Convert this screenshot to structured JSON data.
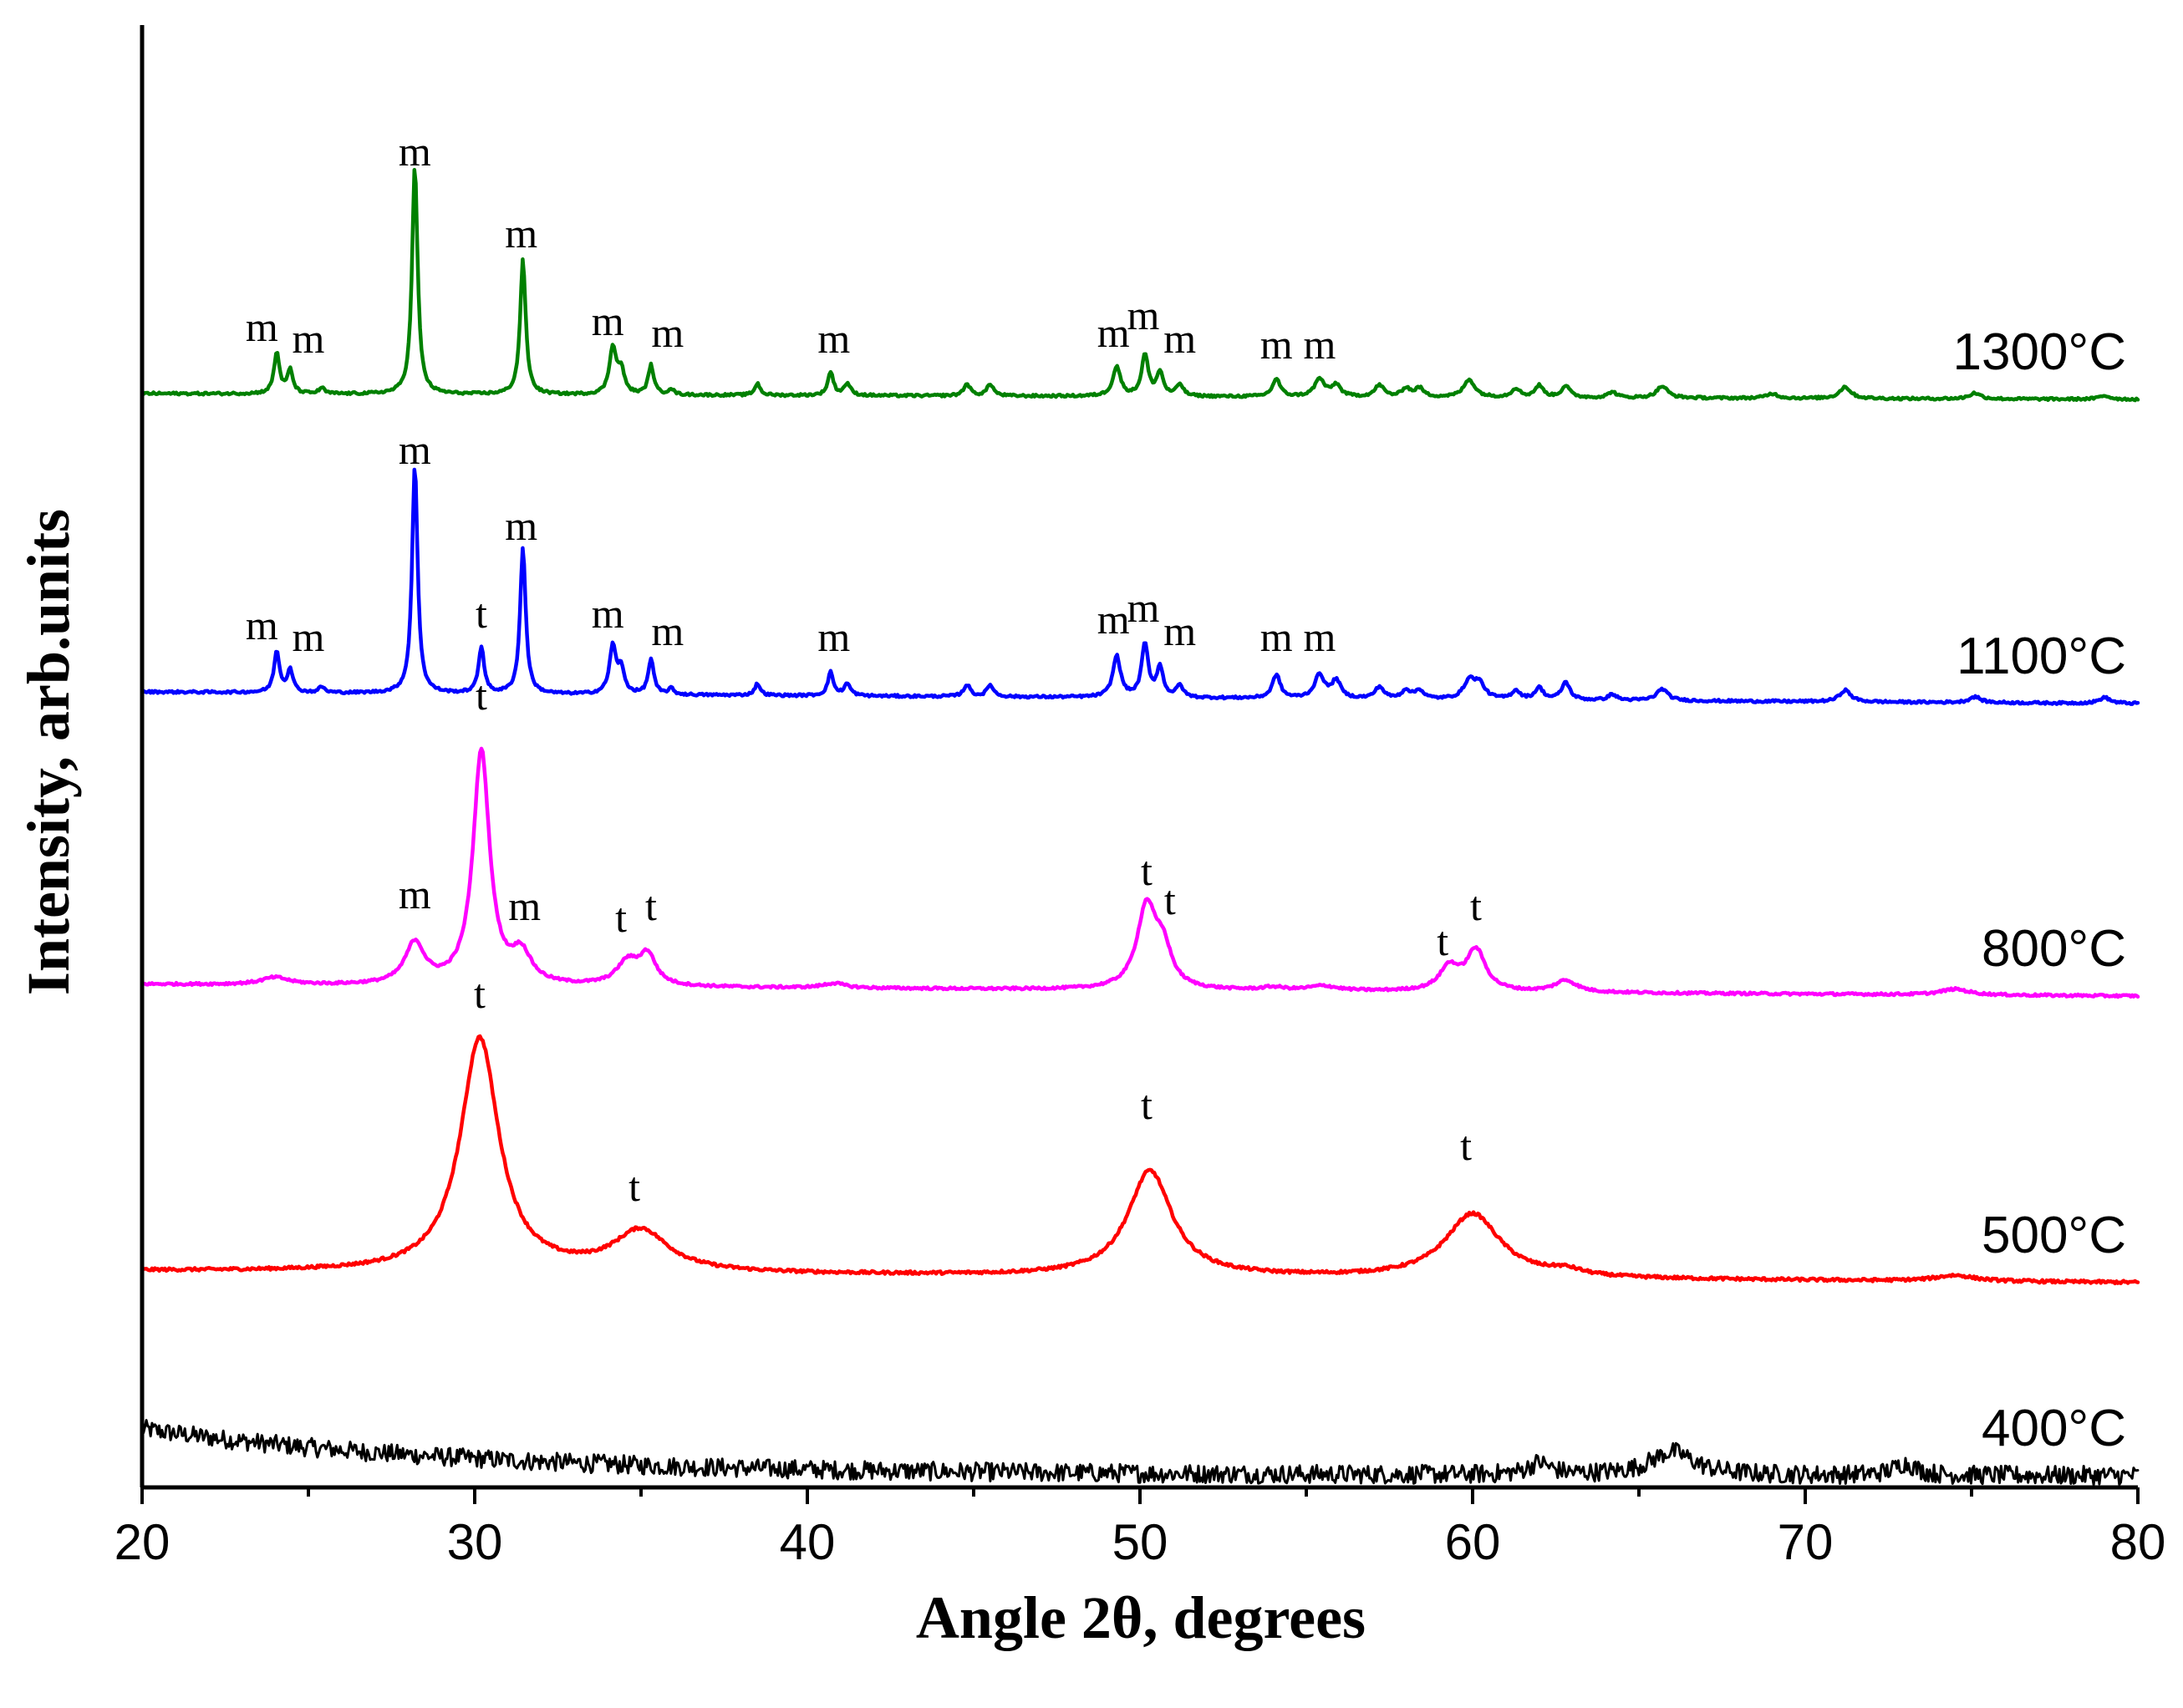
{
  "chart_data": {
    "type": "line",
    "title": "",
    "xlabel": "Angle 2θ, degrees",
    "ylabel": "Intensity, arb.units",
    "xlim": [
      20,
      80
    ],
    "ylim": [
      0,
      250
    ],
    "xticks": [
      "20",
      "30",
      "40",
      "50",
      "60",
      "70",
      "80"
    ],
    "tick_values": [
      20,
      30,
      40,
      50,
      60,
      70,
      80
    ],
    "y_ticks_shown": false,
    "series": [
      {
        "name": "400°C",
        "color": "#000000",
        "kind": "amorphous-noise",
        "start": 10,
        "end": 2,
        "decay": 10,
        "noise": 1.6,
        "peaks": [
          [
            62,
            2,
            0.4
          ],
          [
            66,
            4,
            0.8
          ],
          [
            73,
            2,
            0.4
          ]
        ]
      },
      {
        "name": "500°C",
        "color": "#ff0000",
        "baseline": [
          37,
          35
        ],
        "noise": 0.25,
        "peaks": [
          [
            30.15,
            40,
            0.7
          ],
          [
            35.0,
            7,
            1.0
          ],
          [
            50.3,
            18,
            0.8
          ],
          [
            60.0,
            11,
            1.0
          ],
          [
            62.8,
            1,
            0.6
          ],
          [
            74.5,
            1,
            0.7
          ]
        ],
        "labels": [
          {
            "text": "t",
            "x": 30.15,
            "y": 82
          },
          {
            "text": "t",
            "x": 34.8,
            "y": 49
          },
          {
            "text": "t",
            "x": 50.2,
            "y": 63
          },
          {
            "text": "t",
            "x": 59.8,
            "y": 56
          }
        ]
      },
      {
        "name": "800°C",
        "color": "#ff00ff",
        "baseline": [
          86,
          84
        ],
        "noise": 0.2,
        "peaks": [
          [
            24.0,
            1.2,
            0.5
          ],
          [
            28.2,
            7,
            0.35
          ],
          [
            30.2,
            40,
            0.3
          ],
          [
            31.4,
            5,
            0.35
          ],
          [
            34.6,
            4,
            0.4
          ],
          [
            35.2,
            5,
            0.3
          ],
          [
            50.2,
            14,
            0.35
          ],
          [
            50.7,
            6,
            0.3
          ],
          [
            59.3,
            4,
            0.35
          ],
          [
            60.1,
            7,
            0.35
          ],
          [
            62.8,
            2,
            0.4
          ],
          [
            74.5,
            1,
            0.5
          ],
          [
            40.8,
            0.8,
            0.4
          ],
          [
            55.5,
            0.8,
            0.5
          ],
          [
            54.0,
            0.5,
            0.4
          ]
        ],
        "labels": [
          {
            "text": "m",
            "x": 28.2,
            "y": 99
          },
          {
            "text": "t",
            "x": 30.2,
            "y": 133
          },
          {
            "text": "m",
            "x": 31.5,
            "y": 97
          },
          {
            "text": "t",
            "x": 34.4,
            "y": 95
          },
          {
            "text": "t",
            "x": 35.3,
            "y": 97
          },
          {
            "text": "t",
            "x": 50.2,
            "y": 103
          },
          {
            "text": "t",
            "x": 50.9,
            "y": 98
          },
          {
            "text": "t",
            "x": 59.1,
            "y": 91
          },
          {
            "text": "t",
            "x": 60.1,
            "y": 97
          }
        ]
      },
      {
        "name": "1100°C",
        "color": "#0000ff",
        "baseline": [
          136,
          134
        ],
        "noise": 0.2,
        "peaks": [
          [
            24.05,
            7,
            0.1
          ],
          [
            24.45,
            4,
            0.1
          ],
          [
            25.4,
            1,
            0.1
          ],
          [
            28.2,
            39,
            0.1
          ],
          [
            30.2,
            8,
            0.1
          ],
          [
            31.45,
            25,
            0.1
          ],
          [
            34.15,
            8,
            0.12
          ],
          [
            34.4,
            4,
            0.12
          ],
          [
            35.3,
            6,
            0.1
          ],
          [
            35.9,
            1,
            0.1
          ],
          [
            38.5,
            2,
            0.1
          ],
          [
            40.7,
            4,
            0.1
          ],
          [
            41.2,
            2,
            0.12
          ],
          [
            44.8,
            2,
            0.12
          ],
          [
            45.5,
            2,
            0.12
          ],
          [
            49.3,
            7,
            0.14
          ],
          [
            50.15,
            9,
            0.12
          ],
          [
            50.6,
            5,
            0.12
          ],
          [
            51.2,
            2,
            0.12
          ],
          [
            54.1,
            4,
            0.14
          ],
          [
            55.4,
            4,
            0.18
          ],
          [
            55.9,
            3,
            0.16
          ],
          [
            57.2,
            2,
            0.16
          ],
          [
            58.0,
            1.5,
            0.15
          ],
          [
            58.4,
            1.5,
            0.15
          ],
          [
            59.9,
            3,
            0.2
          ],
          [
            60.2,
            2.5,
            0.2
          ],
          [
            61.3,
            1.5,
            0.15
          ],
          [
            62.0,
            2,
            0.15
          ],
          [
            62.8,
            3,
            0.15
          ],
          [
            64.2,
            1,
            0.15
          ],
          [
            65.7,
            2,
            0.2
          ],
          [
            71.2,
            2,
            0.2
          ],
          [
            75.1,
            1,
            0.2
          ],
          [
            79.0,
            1,
            0.2
          ]
        ],
        "labels": [
          {
            "text": "m",
            "x": 23.6,
            "y": 145
          },
          {
            "text": "m",
            "x": 25.0,
            "y": 143
          },
          {
            "text": "m",
            "x": 28.2,
            "y": 175
          },
          {
            "text": "t",
            "x": 30.2,
            "y": 147
          },
          {
            "text": "m",
            "x": 31.4,
            "y": 162
          },
          {
            "text": "m",
            "x": 34.0,
            "y": 147
          },
          {
            "text": "m",
            "x": 35.8,
            "y": 144
          },
          {
            "text": "m",
            "x": 40.8,
            "y": 143
          },
          {
            "text": "m",
            "x": 49.2,
            "y": 146
          },
          {
            "text": "m",
            "x": 50.1,
            "y": 148
          },
          {
            "text": "m",
            "x": 51.2,
            "y": 144
          },
          {
            "text": "m",
            "x": 54.1,
            "y": 143
          },
          {
            "text": "m",
            "x": 55.4,
            "y": 143
          }
        ]
      },
      {
        "name": "1300°C",
        "color": "#008000",
        "baseline": [
          187,
          186
        ],
        "noise": 0.2,
        "peaks": [
          [
            24.05,
            7,
            0.1
          ],
          [
            24.45,
            4,
            0.1
          ],
          [
            25.4,
            1,
            0.1
          ],
          [
            28.2,
            39,
            0.1
          ],
          [
            31.45,
            23,
            0.1
          ],
          [
            34.15,
            8,
            0.12
          ],
          [
            34.4,
            4,
            0.12
          ],
          [
            35.3,
            5,
            0.1
          ],
          [
            35.9,
            1,
            0.1
          ],
          [
            38.5,
            2,
            0.1
          ],
          [
            40.7,
            4,
            0.1
          ],
          [
            41.2,
            2,
            0.12
          ],
          [
            44.8,
            2,
            0.12
          ],
          [
            45.5,
            2,
            0.12
          ],
          [
            49.3,
            5,
            0.14
          ],
          [
            50.15,
            7,
            0.12
          ],
          [
            50.6,
            4,
            0.12
          ],
          [
            51.2,
            2,
            0.12
          ],
          [
            54.1,
            3,
            0.14
          ],
          [
            55.4,
            3,
            0.18
          ],
          [
            55.9,
            2,
            0.16
          ],
          [
            57.2,
            2,
            0.16
          ],
          [
            58.0,
            1.5,
            0.15
          ],
          [
            58.4,
            1.5,
            0.15
          ],
          [
            59.9,
            3,
            0.2
          ],
          [
            61.3,
            1.5,
            0.15
          ],
          [
            62.0,
            2,
            0.15
          ],
          [
            62.8,
            2,
            0.15
          ],
          [
            64.2,
            1,
            0.15
          ],
          [
            65.7,
            2,
            0.2
          ],
          [
            69.0,
            0.8,
            0.2
          ],
          [
            71.2,
            2,
            0.2
          ],
          [
            75.1,
            1,
            0.2
          ],
          [
            79.0,
            0.6,
            0.2
          ]
        ],
        "labels": [
          {
            "text": "m",
            "x": 23.6,
            "y": 196
          },
          {
            "text": "m",
            "x": 25.0,
            "y": 194
          },
          {
            "text": "m",
            "x": 28.2,
            "y": 226
          },
          {
            "text": "m",
            "x": 31.4,
            "y": 212
          },
          {
            "text": "m",
            "x": 34.0,
            "y": 197
          },
          {
            "text": "m",
            "x": 35.8,
            "y": 195
          },
          {
            "text": "m",
            "x": 40.8,
            "y": 194
          },
          {
            "text": "m",
            "x": 49.2,
            "y": 195
          },
          {
            "text": "m",
            "x": 50.1,
            "y": 198
          },
          {
            "text": "m",
            "x": 51.2,
            "y": 194
          },
          {
            "text": "m",
            "x": 54.1,
            "y": 193
          },
          {
            "text": "m",
            "x": 55.4,
            "y": 193
          }
        ]
      }
    ]
  }
}
